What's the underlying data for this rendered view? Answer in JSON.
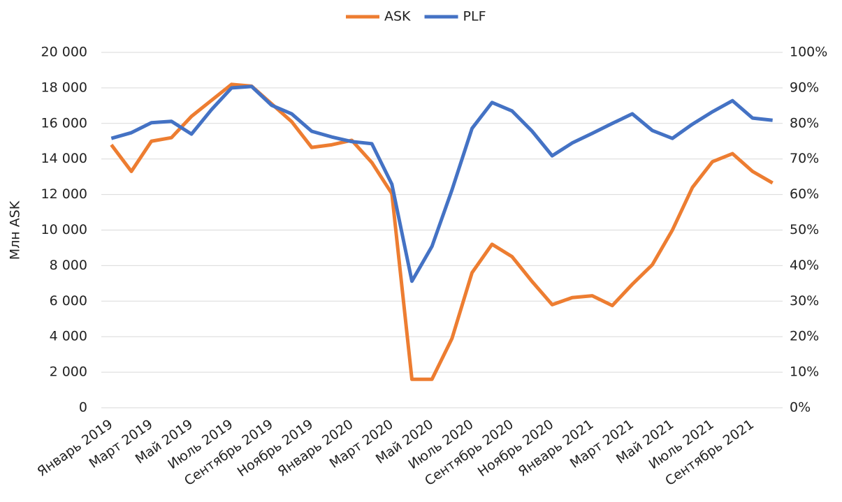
{
  "chart_data": {
    "type": "line",
    "y_label": "Млн ASK",
    "categories": [
      "Январь 2019",
      null,
      "Март 2019",
      null,
      "Май 2019",
      null,
      "Июль 2019",
      null,
      "Сентябрь 2019",
      null,
      "Ноябрь 2019",
      null,
      "Январь 2020",
      null,
      "Март 2020",
      null,
      "Май 2020",
      null,
      "Июль 2020",
      null,
      "Сентябрь 2020",
      null,
      "Ноябрь 2020",
      null,
      "Январь 2021",
      null,
      "Март 2021",
      null,
      "Май 2021",
      null,
      "Июль 2021",
      null,
      "Сентябрь 2021",
      null
    ],
    "series": [
      {
        "name": "ASK",
        "color": "#ed7d31",
        "values": [
          14800,
          13300,
          15000,
          15200,
          16400,
          17300,
          18200,
          18100,
          17100,
          16100,
          14650,
          14800,
          15050,
          13800,
          12050,
          1600,
          1600,
          3900,
          7600,
          9200,
          8500,
          7100,
          5800,
          6200,
          6300,
          5750,
          6950,
          8050,
          10000,
          12400,
          13850,
          14300,
          13300,
          12650
        ]
      },
      {
        "name": "PLF",
        "color": "#4472c4",
        "axis": "y2",
        "values": [
          75.8,
          77.4,
          80.2,
          80.6,
          77.0,
          83.9,
          90.0,
          90.4,
          85.1,
          82.7,
          77.8,
          76.2,
          74.9,
          74.3,
          62.9,
          35.6,
          45.4,
          61.3,
          78.6,
          85.9,
          83.5,
          77.8,
          70.9,
          74.5,
          77.2,
          80.0,
          82.7,
          78.0,
          75.8,
          79.8,
          83.3,
          86.4,
          81.5,
          80.9
        ]
      }
    ],
    "ylim": [
      0,
      20000
    ],
    "yticks": [
      0,
      {
        "value": 2000,
        "label": "2 000"
      },
      {
        "value": 4000,
        "label": "4 000"
      },
      {
        "value": 6000,
        "label": "6 000"
      },
      {
        "value": 8000,
        "label": "8 000"
      },
      {
        "value": 10000,
        "label": "10 000"
      },
      {
        "value": 12000,
        "label": "12 000"
      },
      {
        "value": 14000,
        "label": "14 000"
      },
      {
        "value": 16000,
        "label": "16 000"
      },
      {
        "value": 18000,
        "label": "18 000"
      },
      {
        "value": 20000,
        "label": "20 000"
      }
    ],
    "y2lim": [
      0,
      100
    ],
    "y2ticks": [
      {
        "value": 0,
        "label": "0%"
      },
      {
        "value": 10,
        "label": "10%"
      },
      {
        "value": 20,
        "label": "20%"
      },
      {
        "value": 30,
        "label": "30%"
      },
      {
        "value": 40,
        "label": "40%"
      },
      {
        "value": 50,
        "label": "50%"
      },
      {
        "value": 60,
        "label": "60%"
      },
      {
        "value": 70,
        "label": "70%"
      },
      {
        "value": 80,
        "label": "80%"
      },
      {
        "value": 90,
        "label": "90%"
      },
      {
        "value": 100,
        "label": "100%"
      }
    ],
    "grid": true,
    "legend": "top"
  }
}
